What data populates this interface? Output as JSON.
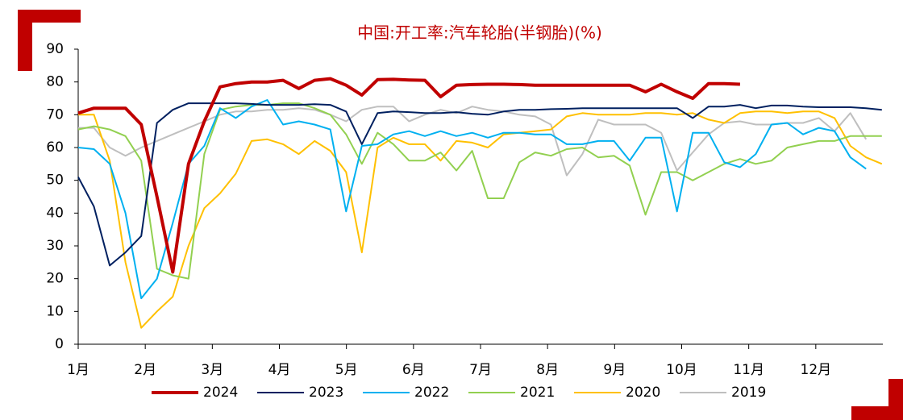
{
  "chart_data": {
    "type": "line",
    "title": "中国:开工率:汽车轮胎(半钢胎)(%)",
    "x": [
      1,
      1.235,
      1.47,
      1.705,
      1.94,
      2.175,
      2.41,
      2.645,
      2.88,
      3.115,
      3.35,
      3.585,
      3.82,
      4.055,
      4.29,
      4.525,
      4.76,
      4.995,
      5.23,
      5.465,
      5.7,
      5.935,
      6.17,
      6.405,
      6.64,
      6.875,
      7.11,
      7.345,
      7.58,
      7.815,
      8.05,
      8.285,
      8.52,
      8.755,
      8.99,
      9.225,
      9.46,
      9.695,
      9.93,
      10.165,
      10.4,
      10.635,
      10.87,
      11.105,
      11.34,
      11.575,
      11.81,
      12.045,
      12.28,
      12.515,
      12.75,
      12.985
    ],
    "xlim": [
      1,
      13
    ],
    "xticks": [
      {
        "value": 1,
        "label": "1月"
      },
      {
        "value": 2,
        "label": "2月"
      },
      {
        "value": 3,
        "label": "3月"
      },
      {
        "value": 4,
        "label": "4月"
      },
      {
        "value": 5,
        "label": "5月"
      },
      {
        "value": 6,
        "label": "6月"
      },
      {
        "value": 7,
        "label": "7月"
      },
      {
        "value": 8,
        "label": "8月"
      },
      {
        "value": 9,
        "label": "9月"
      },
      {
        "value": 10,
        "label": "10月"
      },
      {
        "value": 11,
        "label": "11月"
      },
      {
        "value": 12,
        "label": "12月"
      }
    ],
    "ylim": [
      0,
      90
    ],
    "yticks": [
      0,
      10,
      20,
      30,
      40,
      50,
      60,
      70,
      80,
      90
    ],
    "legend": "bottom",
    "series": [
      {
        "name": "2024",
        "color": "#c00000",
        "width": 4,
        "values": [
          70.5,
          72,
          72,
          72,
          67,
          45,
          22,
          55,
          68,
          78.5,
          79.5,
          80,
          80,
          80.5,
          78,
          80.5,
          81,
          79,
          76,
          80.7,
          80.8,
          80.6,
          80.5,
          75.5,
          79,
          79.2,
          79.3,
          79.3,
          79.2,
          79,
          79,
          79,
          79,
          79,
          79,
          79,
          77,
          79.3,
          77,
          75,
          79.5,
          79.5,
          79.3,
          null,
          null,
          null,
          null,
          null,
          null,
          null,
          null,
          null
        ]
      },
      {
        "name": "2023",
        "color": "#002060",
        "width": 2,
        "values": [
          51,
          42,
          24,
          28,
          33,
          67.5,
          71.5,
          73.5,
          73.5,
          73.5,
          73.5,
          73.3,
          73,
          73,
          73,
          73.2,
          73,
          71,
          61,
          70.5,
          71,
          70.8,
          70.5,
          70.5,
          70.8,
          70.3,
          70,
          71,
          71.5,
          71.5,
          71.7,
          71.8,
          72,
          72,
          72,
          72,
          72,
          72,
          72,
          69,
          72.5,
          72.5,
          73,
          72,
          72.8,
          72.8,
          72.5,
          72.3,
          72.3,
          72.3,
          72,
          71.5
        ]
      },
      {
        "name": "2022",
        "color": "#00b0f0",
        "width": 2,
        "values": [
          60,
          59.5,
          55,
          40,
          14,
          20,
          37,
          55,
          60.5,
          72,
          69,
          72.5,
          74.5,
          67,
          68,
          67,
          65.5,
          40.5,
          60.5,
          61,
          64,
          65,
          63.5,
          65,
          63.5,
          64.5,
          63,
          64.5,
          64.5,
          64,
          64,
          61,
          61,
          62,
          62,
          56,
          63,
          63,
          40.5,
          64.5,
          64.5,
          55.5,
          54,
          58,
          67,
          67.5,
          64,
          66,
          65,
          57,
          53.5,
          null
        ]
      },
      {
        "name": "2021",
        "color": "#92d050",
        "width": 2,
        "values": [
          65.5,
          66.5,
          65.5,
          63.5,
          56,
          23,
          21,
          20,
          58,
          71.5,
          72.5,
          73,
          73,
          73.5,
          73.5,
          72,
          70,
          64,
          55,
          64.5,
          61,
          56,
          56,
          58.5,
          53,
          59,
          44.5,
          44.5,
          55.5,
          58.5,
          57.5,
          59.5,
          60,
          57,
          57.5,
          54.5,
          39.5,
          52.5,
          52.5,
          50,
          52.5,
          55,
          56.5,
          55,
          56,
          60,
          61,
          62,
          62,
          63.5,
          63.5,
          63.5
        ]
      },
      {
        "name": "2020",
        "color": "#ffc000",
        "width": 2,
        "values": [
          70,
          70,
          56,
          25,
          5,
          10,
          14.5,
          30,
          41.5,
          46,
          52,
          62,
          62.5,
          61,
          58,
          62,
          59,
          52.5,
          28,
          60,
          63,
          61,
          61,
          56,
          62,
          61.5,
          60,
          64,
          64.5,
          65,
          65.5,
          69.5,
          70.5,
          70,
          70,
          70,
          70.5,
          70.5,
          70,
          70.5,
          68.5,
          67.5,
          70.5,
          71,
          71,
          70.5,
          71,
          71,
          69,
          60.5,
          57,
          55
        ]
      },
      {
        "name": "2019",
        "color": "#bfbfbf",
        "width": 2,
        "values": [
          66,
          66,
          60,
          57.5,
          60,
          62,
          64,
          66,
          68,
          70,
          71,
          71,
          71.5,
          71.5,
          72,
          71.5,
          70,
          68,
          71.5,
          72.5,
          72.5,
          68,
          70,
          71.5,
          70.5,
          72.5,
          71.5,
          71,
          70,
          69.5,
          67,
          51.5,
          58,
          68.5,
          67,
          67,
          67,
          64.5,
          53,
          58.5,
          64,
          67.5,
          68,
          67,
          67,
          67.5,
          67.5,
          69,
          65,
          70.5,
          62.5,
          null
        ]
      }
    ]
  }
}
